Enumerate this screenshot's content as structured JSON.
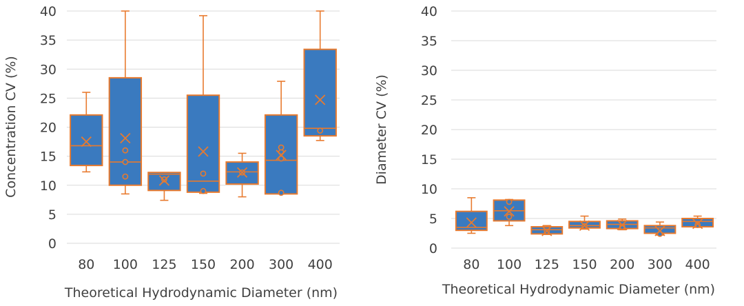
{
  "colors": {
    "box_fill": "#3A7ABF",
    "box_stroke": "#E87A2E",
    "grid": "#D9D9D9",
    "text": "#404040"
  },
  "chart_data": [
    {
      "type": "box",
      "xlabel": "Theoretical Hydrodynamic Diameter (nm)",
      "ylabel": "Concentration CV (%)",
      "ylim": [
        0,
        40
      ],
      "yticks": [
        "0",
        "5",
        "10",
        "15",
        "20",
        "25",
        "30",
        "35",
        "40"
      ],
      "categories": [
        "80",
        "100",
        "125",
        "150",
        "200",
        "300",
        "400"
      ],
      "boxes": [
        {
          "category": "80",
          "min": 12.3,
          "q1": 13.4,
          "median": 16.8,
          "q3": 22.1,
          "max": 26.0,
          "mean": 17.5,
          "points": []
        },
        {
          "category": "100",
          "min": 8.5,
          "q1": 10.0,
          "median": 14.0,
          "q3": 28.5,
          "max": 40.0,
          "mean": 18.1,
          "points": [
            11.5,
            14.0,
            16.0
          ]
        },
        {
          "category": "125",
          "min": 7.4,
          "q1": 9.1,
          "median": 11.9,
          "q3": 12.2,
          "max": 12.2,
          "mean": 10.8,
          "points": [
            11.0
          ]
        },
        {
          "category": "150",
          "min": 8.6,
          "q1": 8.8,
          "median": 10.7,
          "q3": 25.5,
          "max": 39.2,
          "mean": 15.8,
          "points": [
            9.0,
            12.0
          ]
        },
        {
          "category": "200",
          "min": 8.0,
          "q1": 10.2,
          "median": 12.3,
          "q3": 14.0,
          "max": 15.5,
          "mean": 12.2,
          "points": [
            12.2
          ]
        },
        {
          "category": "300",
          "min": 8.5,
          "q1": 8.5,
          "median": 14.3,
          "q3": 22.1,
          "max": 27.9,
          "mean": 15.2,
          "points": [
            8.7,
            14.6,
            15.7,
            16.5
          ]
        },
        {
          "category": "400",
          "min": 17.7,
          "q1": 18.5,
          "median": 19.8,
          "q3": 33.4,
          "max": 40.0,
          "mean": 24.7,
          "points": [
            19.4
          ]
        }
      ]
    },
    {
      "type": "box",
      "xlabel": "Theoretical Hydrodynamic Diameter (nm)",
      "ylabel": "Diameter CV (%)",
      "ylim": [
        0,
        40
      ],
      "yticks": [
        "0",
        "5",
        "10",
        "15",
        "20",
        "25",
        "30",
        "35",
        "40"
      ],
      "categories": [
        "80",
        "100",
        "125",
        "150",
        "200",
        "300",
        "400"
      ],
      "boxes": [
        {
          "category": "80",
          "min": 2.5,
          "q1": 3.0,
          "median": 3.5,
          "q3": 6.2,
          "max": 8.5,
          "mean": 4.3,
          "points": []
        },
        {
          "category": "100",
          "min": 3.8,
          "q1": 4.6,
          "median": 6.3,
          "q3": 8.1,
          "max": 8.2,
          "mean": 6.2,
          "points": [
            5.3,
            7.8
          ]
        },
        {
          "category": "125",
          "min": 2.3,
          "q1": 2.4,
          "median": 3.1,
          "q3": 3.6,
          "max": 3.8,
          "mean": 2.9,
          "points": [
            2.8
          ]
        },
        {
          "category": "150",
          "min": 3.2,
          "q1": 3.4,
          "median": 3.8,
          "q3": 4.5,
          "max": 5.4,
          "mean": 3.8,
          "points": [
            3.7
          ]
        },
        {
          "category": "200",
          "min": 3.1,
          "q1": 3.3,
          "median": 4.0,
          "q3": 4.6,
          "max": 4.9,
          "mean": 3.9,
          "points": [
            3.6
          ]
        },
        {
          "category": "300",
          "min": 2.2,
          "q1": 2.5,
          "median": 3.4,
          "q3": 3.8,
          "max": 4.4,
          "mean": 2.9,
          "points": [
            2.4
          ]
        },
        {
          "category": "400",
          "min": 3.5,
          "q1": 3.6,
          "median": 4.5,
          "q3": 5.0,
          "max": 5.4,
          "mean": 4.1,
          "points": [
            3.9
          ]
        }
      ]
    }
  ]
}
